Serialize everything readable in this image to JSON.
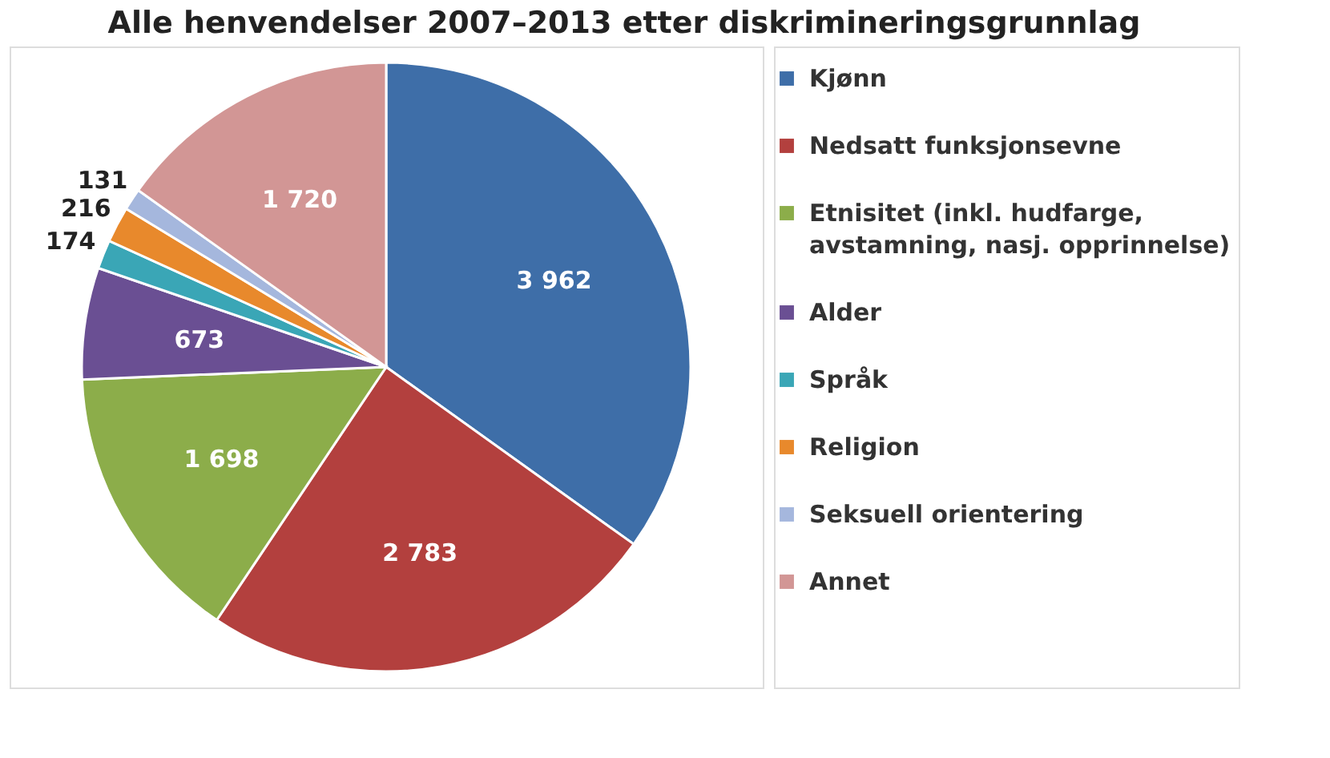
{
  "chart_data": {
    "type": "pie",
    "title": "Alle henvendelser 2007–2013 etter diskrimineringsgrunnlag",
    "categories": [
      "Kjønn",
      "Nedsatt funksjonsevne",
      "Etnisitet (inkl. hudfarge, avstamning, nasj. opprinnelse)",
      "Alder",
      "Språk",
      "Religion",
      "Seksuell orientering",
      "Annet"
    ],
    "values": [
      3962,
      2783,
      1698,
      673,
      174,
      216,
      131,
      1720
    ],
    "value_labels": [
      "3 962",
      "2 783",
      "1 698",
      "673",
      "174",
      "216",
      "131",
      "1 720"
    ],
    "colors": [
      "#3e6ea8",
      "#b3403e",
      "#8cad4a",
      "#6a4f93",
      "#3aa6b6",
      "#e8892c",
      "#a5b7dd",
      "#d29695"
    ],
    "legend": "right"
  }
}
